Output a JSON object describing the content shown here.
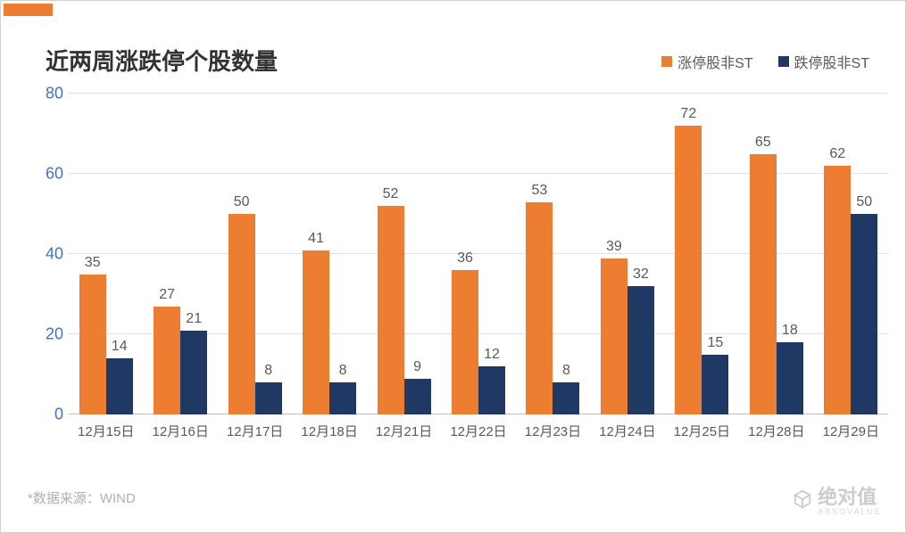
{
  "accent_color": "#ed7d31",
  "title": {
    "text": "近两周涨跌停个股数量",
    "fontsize": 26,
    "color": "#333333"
  },
  "legend": {
    "items": [
      {
        "label": "涨停股非ST",
        "color": "#ed7d31"
      },
      {
        "label": "跌停股非ST",
        "color": "#1f3864"
      }
    ],
    "fontsize": 16
  },
  "chart": {
    "type": "bar",
    "categories": [
      "12月15日",
      "12月16日",
      "12月17日",
      "12月18日",
      "12月21日",
      "12月22日",
      "12月23日",
      "12月24日",
      "12月25日",
      "12月28日",
      "12月29日"
    ],
    "series": [
      {
        "name": "涨停股非ST",
        "color": "#ed7d31",
        "values": [
          35,
          27,
          50,
          41,
          52,
          36,
          53,
          39,
          72,
          65,
          62
        ]
      },
      {
        "name": "跌停股非ST",
        "color": "#1f3864",
        "values": [
          14,
          21,
          8,
          8,
          9,
          12,
          8,
          32,
          15,
          18,
          50
        ]
      }
    ],
    "ylim": [
      0,
      80
    ],
    "ytick_step": 20,
    "ytick_color": "#4472c4",
    "ytick_fontsize": 18,
    "grid_color": "#e0e0e0",
    "baseline_color": "#bfbfbf",
    "background_color": "#ffffff",
    "bar_gap_ratio": 0.0,
    "label_fontsize": 16,
    "label_color": "#595959",
    "xlabel_fontsize": 15,
    "xlabel_color": "#595959"
  },
  "source": {
    "prefix": "*数据来源：",
    "value": "WIND",
    "color": "#b0b0b0",
    "fontsize": 15
  },
  "watermark": {
    "text": "绝对值",
    "sub": "ABSOVALUE",
    "color": "#cccccc",
    "fontsize": 22
  }
}
